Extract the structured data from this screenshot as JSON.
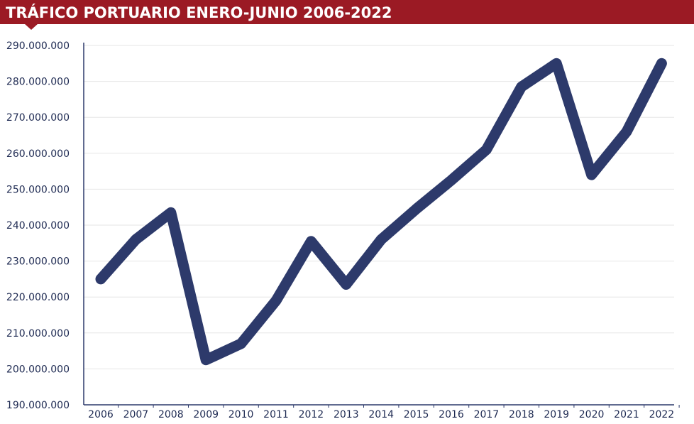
{
  "header": {
    "title": "TRÁFICO PORTUARIO ENERO-JUNIO 2006-2022",
    "background": "#9b1a24",
    "text_color": "#ffffff"
  },
  "chart_data": {
    "type": "line",
    "title": "TRÁFICO PORTUARIO ENERO-JUNIO 2006-2022",
    "xlabel": "",
    "ylabel": "",
    "x": [
      "2006",
      "2007",
      "2008",
      "2009",
      "2010",
      "2011",
      "2012",
      "2013",
      "2014",
      "2015",
      "2016",
      "2017",
      "2018",
      "2019",
      "2020",
      "2021",
      "2022"
    ],
    "y_ticks": [
      "190.000.000",
      "200.000.000",
      "210.000.000",
      "220.000.000",
      "230.000.000",
      "240.000.000",
      "250.000.000",
      "260.000.000",
      "270.000.000",
      "280.000.000",
      "290.000.000"
    ],
    "ylim": [
      190000000,
      290000000
    ],
    "grid": true,
    "legend": "none",
    "series": [
      {
        "color": "#2d3a6b",
        "values": [
          225000000,
          236000000,
          243500000,
          202500000,
          207000000,
          219000000,
          235500000,
          223500000,
          236000000,
          244500000,
          252500000,
          261000000,
          278500000,
          285000000,
          254000000,
          266000000,
          285000000
        ]
      }
    ]
  }
}
